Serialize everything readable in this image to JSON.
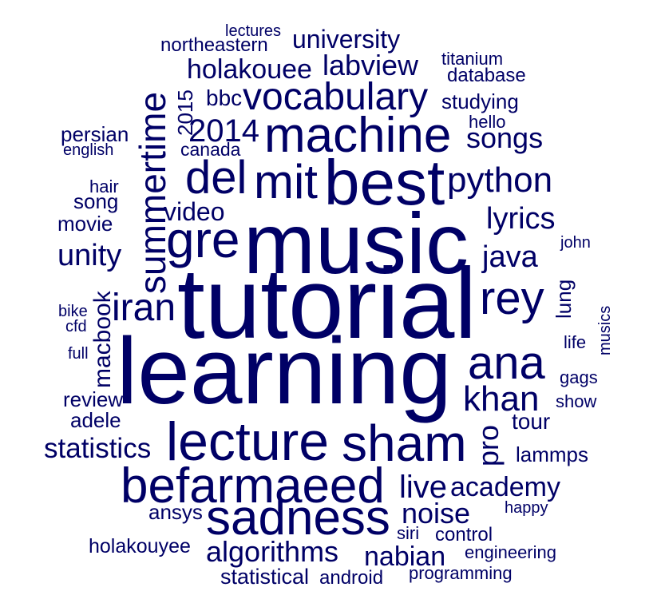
{
  "color": "#000066",
  "words": [
    {
      "text": "tutorial",
      "weight": 100
    },
    {
      "text": "learning",
      "weight": 96
    },
    {
      "text": "music",
      "weight": 92
    },
    {
      "text": "best",
      "weight": 66
    },
    {
      "text": "befarmaeed",
      "weight": 60
    },
    {
      "text": "lecture",
      "weight": 60
    },
    {
      "text": "sadness",
      "weight": 56
    },
    {
      "text": "sham",
      "weight": 56
    },
    {
      "text": "machine",
      "weight": 54
    },
    {
      "text": "summertime",
      "weight": 52
    },
    {
      "text": "gre",
      "weight": 50
    },
    {
      "text": "rey",
      "weight": 50
    },
    {
      "text": "iran",
      "weight": 46
    },
    {
      "text": "ana",
      "weight": 46
    },
    {
      "text": "mit",
      "weight": 46
    },
    {
      "text": "del",
      "weight": 44
    },
    {
      "text": "vocabulary",
      "weight": 40
    },
    {
      "text": "python",
      "weight": 38
    },
    {
      "text": "khan",
      "weight": 38
    },
    {
      "text": "2014",
      "weight": 36
    },
    {
      "text": "java",
      "weight": 34
    },
    {
      "text": "lyrics",
      "weight": 34
    },
    {
      "text": "algorithms",
      "weight": 32
    },
    {
      "text": "live",
      "weight": 34
    },
    {
      "text": "academy",
      "weight": 32
    },
    {
      "text": "noise",
      "weight": 32
    },
    {
      "text": "unity",
      "weight": 32
    },
    {
      "text": "statistics",
      "weight": 30
    },
    {
      "text": "holakouee",
      "weight": 30
    },
    {
      "text": "labview",
      "weight": 30
    },
    {
      "text": "nabian",
      "weight": 30
    },
    {
      "text": "songs",
      "weight": 30
    },
    {
      "text": "university",
      "weight": 28
    },
    {
      "text": "macbook",
      "weight": 28
    },
    {
      "text": "pro",
      "weight": 28
    },
    {
      "text": "video",
      "weight": 28
    },
    {
      "text": "statistical",
      "weight": 24
    },
    {
      "text": "tour",
      "weight": 24
    },
    {
      "text": "adele",
      "weight": 22
    },
    {
      "text": "studying",
      "weight": 22
    },
    {
      "text": "bbc",
      "weight": 22
    },
    {
      "text": "lammps",
      "weight": 22
    },
    {
      "text": "ansys",
      "weight": 22
    },
    {
      "text": "review",
      "weight": 22
    },
    {
      "text": "lung",
      "weight": 22
    },
    {
      "text": "2015",
      "weight": 22
    },
    {
      "text": "persian",
      "weight": 22
    },
    {
      "text": "song",
      "weight": 22
    },
    {
      "text": "movie",
      "weight": 22
    },
    {
      "text": "holakouyee",
      "weight": 22
    },
    {
      "text": "database",
      "weight": 20
    },
    {
      "text": "northeastern",
      "weight": 20
    },
    {
      "text": "control",
      "weight": 20
    },
    {
      "text": "engineering",
      "weight": 20
    },
    {
      "text": "programming",
      "weight": 20
    },
    {
      "text": "android",
      "weight": 20
    },
    {
      "text": "siri",
      "weight": 20
    },
    {
      "text": "canada",
      "weight": 20
    },
    {
      "text": "hair",
      "weight": 20
    },
    {
      "text": "gags",
      "weight": 20
    },
    {
      "text": "show",
      "weight": 20
    },
    {
      "text": "life",
      "weight": 20
    },
    {
      "text": "hello",
      "weight": 20
    },
    {
      "text": "titanium",
      "weight": 20
    },
    {
      "text": "lectures",
      "weight": 18
    },
    {
      "text": "english",
      "weight": 18
    },
    {
      "text": "bike",
      "weight": 18
    },
    {
      "text": "cfd",
      "weight": 18
    },
    {
      "text": "full",
      "weight": 18
    },
    {
      "text": "john",
      "weight": 18
    },
    {
      "text": "musics",
      "weight": 18
    },
    {
      "text": "happy",
      "weight": 18
    }
  ]
}
